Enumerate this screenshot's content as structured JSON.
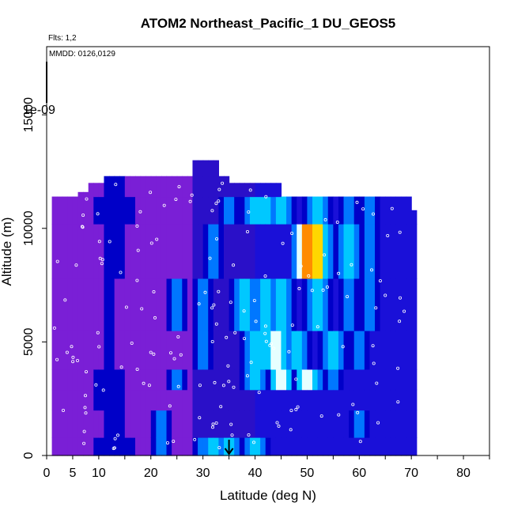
{
  "chart_data": {
    "type": "heatmap",
    "title": "ATOM2 Northeast_Pacific_1 DU_GEOS5",
    "flights_note": "Flts: 1,2",
    "dates_note": "MMDD: 0126,0129",
    "xlabel": "Latitude (deg N)",
    "ylabel": "Altitude (m)",
    "xlim": [
      0,
      85
    ],
    "ylim": [
      0,
      18000
    ],
    "x_tick_labels": [
      "0",
      "5",
      "10",
      "20",
      "30",
      "40",
      "50",
      "60",
      "70",
      "80"
    ],
    "y_tick_labels": [
      "0",
      "5000",
      "10000",
      "15000"
    ],
    "scale_label": "1e-09",
    "marker": {
      "type": "arrow",
      "latitude": 35
    },
    "grid": false,
    "colorscale": [
      "#7a1fd6",
      "#0000c8",
      "#0077ff",
      "#00c8ff",
      "#e6ffff",
      "#ffd700",
      "#ff8c00",
      "#cc0000"
    ],
    "cells": [
      [
        0,
        800,
        1,
        12
      ],
      [
        800,
        2000,
        2,
        22
      ],
      [
        2000,
        2900,
        1,
        13
      ],
      [
        2900,
        3800,
        0,
        10
      ],
      [
        3800,
        5500,
        0,
        8
      ],
      [
        5500,
        7800,
        0,
        6
      ],
      [
        7800,
        10200,
        0,
        5
      ],
      [
        10200,
        11400,
        0,
        6
      ],
      [
        11400,
        12300,
        0,
        6
      ],
      [
        12300,
        13000,
        0,
        6
      ],
      [
        0,
        800,
        2,
        22
      ],
      [
        800,
        2000,
        2,
        22
      ],
      [
        2000,
        2900,
        1,
        12
      ],
      [
        2900,
        3800,
        0,
        10
      ],
      [
        3800,
        5500,
        0,
        8
      ],
      [
        5500,
        7800,
        0,
        5
      ],
      [
        7800,
        10200,
        0,
        4
      ],
      [
        10200,
        11400,
        0,
        5
      ],
      [
        11400,
        12300,
        0,
        6
      ],
      [
        12300,
        13000,
        0,
        6
      ],
      [
        0,
        800,
        1,
        16
      ],
      [
        800,
        2000,
        1,
        14
      ],
      [
        2000,
        2900,
        1,
        14
      ],
      [
        2900,
        3800,
        0,
        12
      ],
      [
        3800,
        5500,
        0,
        10
      ],
      [
        5500,
        7800,
        0,
        7
      ],
      [
        7800,
        10200,
        0,
        6
      ],
      [
        10200,
        11400,
        0,
        7
      ],
      [
        11400,
        12300,
        0,
        8
      ],
      [
        12300,
        13000,
        0,
        8
      ],
      [
        0,
        800,
        1,
        16
      ],
      [
        800,
        2000,
        1,
        14
      ],
      [
        2000,
        2900,
        1,
        14
      ],
      [
        2900,
        3800,
        1,
        14
      ],
      [
        3800,
        5500,
        0,
        12
      ],
      [
        5500,
        7800,
        0,
        10
      ],
      [
        7800,
        10200,
        0,
        8
      ],
      [
        10200,
        11400,
        0,
        9
      ],
      [
        11400,
        12300,
        1,
        14
      ],
      [
        12300,
        13000,
        1,
        14
      ],
      [
        0,
        800,
        2,
        30
      ],
      [
        800,
        2000,
        1,
        12
      ],
      [
        2000,
        2900,
        1,
        11
      ],
      [
        2900,
        3800,
        1,
        10
      ],
      [
        3800,
        5500,
        1,
        12
      ],
      [
        5500,
        7800,
        0,
        14
      ],
      [
        7800,
        10200,
        0,
        12
      ],
      [
        10200,
        11400,
        1,
        16
      ],
      [
        11400,
        12300,
        1,
        12
      ],
      [
        12300,
        13000,
        1,
        12
      ],
      [
        0,
        800,
        3,
        32
      ],
      [
        800,
        2000,
        1,
        12
      ],
      [
        2000,
        2900,
        1,
        10
      ],
      [
        2900,
        3800,
        2,
        25
      ],
      [
        3800,
        5500,
        2,
        30
      ],
      [
        5500,
        7800,
        1,
        12
      ],
      [
        7800,
        10200,
        1,
        12
      ],
      [
        10200,
        11400,
        1,
        10
      ],
      [
        11400,
        12300,
        1,
        12
      ],
      [
        12300,
        13000,
        1,
        10
      ],
      [
        0,
        800,
        3,
        35
      ],
      [
        800,
        2000,
        1,
        14
      ],
      [
        2000,
        2900,
        1,
        10
      ],
      [
        2900,
        3800,
        3,
        40
      ],
      [
        3800,
        5500,
        3,
        40
      ],
      [
        5500,
        7800,
        1,
        12
      ],
      [
        7800,
        10200,
        1,
        12
      ],
      [
        10200,
        11400,
        1,
        14
      ],
      [
        11400,
        12300,
        1,
        12
      ],
      [
        12300,
        13000,
        1,
        14
      ],
      [
        0,
        800,
        3,
        40
      ],
      [
        800,
        2000,
        1,
        14
      ],
      [
        2000,
        2900,
        1,
        12
      ],
      [
        2900,
        3800,
        3,
        45
      ],
      [
        3800,
        5500,
        4,
        42
      ],
      [
        5500,
        7800,
        2,
        25
      ],
      [
        7800,
        10200,
        1,
        14
      ],
      [
        10200,
        11400,
        1,
        14
      ],
      [
        11400,
        12300,
        1,
        14
      ],
      [
        12300,
        13000,
        1,
        14
      ],
      [
        0,
        800,
        3,
        35
      ],
      [
        800,
        2000,
        1,
        14
      ],
      [
        2000,
        2900,
        1,
        12
      ],
      [
        2900,
        3800,
        5,
        45
      ],
      [
        3800,
        5500,
        4,
        40
      ],
      [
        5500,
        7800,
        2,
        30
      ],
      [
        7800,
        10200,
        2,
        32
      ],
      [
        10200,
        11400,
        2,
        35
      ],
      [
        11400,
        12300,
        1,
        14
      ],
      [
        12300,
        13000,
        1,
        14
      ],
      [
        0,
        800,
        2,
        22
      ],
      [
        800,
        2000,
        1,
        12
      ],
      [
        2000,
        2900,
        1,
        12
      ],
      [
        2900,
        3800,
        5,
        50
      ],
      [
        3800,
        5500,
        3,
        40
      ],
      [
        5500,
        7800,
        3,
        38
      ],
      [
        7800,
        10200,
        4,
        50
      ],
      [
        10200,
        11400,
        3,
        40
      ],
      [
        11400,
        12300,
        1,
        14
      ],
      [
        12300,
        13000,
        1,
        14
      ],
      [
        0,
        800,
        1,
        14
      ],
      [
        800,
        2000,
        1,
        12
      ],
      [
        2000,
        2900,
        1,
        12
      ],
      [
        2900,
        3800,
        4,
        45
      ],
      [
        3800,
        5500,
        3,
        45
      ],
      [
        5500,
        7800,
        3,
        42
      ],
      [
        7800,
        10200,
        6,
        52
      ],
      [
        10200,
        11400,
        3,
        42
      ],
      [
        11400,
        12300,
        1,
        14
      ],
      [
        12300,
        13000,
        1,
        14
      ],
      [
        0,
        800,
        1,
        12
      ],
      [
        800,
        2000,
        1,
        12
      ],
      [
        2000,
        2900,
        1,
        12
      ],
      [
        2900,
        3800,
        3,
        45
      ],
      [
        3800,
        5500,
        5,
        44
      ],
      [
        5500,
        7800,
        4,
        45
      ],
      [
        7800,
        10200,
        7,
        50
      ],
      [
        10200,
        11400,
        3,
        45
      ],
      [
        11400,
        12300,
        1,
        14
      ],
      [
        12300,
        13000,
        1,
        14
      ],
      [
        0,
        800,
        1,
        12
      ],
      [
        800,
        2000,
        1,
        12
      ],
      [
        2000,
        2900,
        1,
        12
      ],
      [
        2900,
        3800,
        2,
        52
      ],
      [
        3800,
        5500,
        4,
        48
      ],
      [
        5500,
        7800,
        3,
        52
      ],
      [
        7800,
        10200,
        6,
        52
      ],
      [
        10200,
        11400,
        3,
        52
      ],
      [
        11400,
        12300,
        1,
        14
      ],
      [
        12300,
        13000,
        1,
        14
      ],
      [
        0,
        800,
        1,
        10
      ],
      [
        800,
        2000,
        1,
        12
      ],
      [
        2000,
        2900,
        1,
        12
      ],
      [
        2900,
        3800,
        2,
        55
      ],
      [
        3800,
        5500,
        3,
        55
      ],
      [
        5500,
        7800,
        2,
        58
      ],
      [
        7800,
        10200,
        3,
        58
      ],
      [
        10200,
        11400,
        2,
        58
      ],
      [
        11400,
        12300,
        1,
        14
      ],
      [
        12300,
        13000,
        1,
        14
      ],
      [
        0,
        800,
        1,
        10
      ],
      [
        800,
        2000,
        2,
        60
      ],
      [
        2000,
        2900,
        1,
        12
      ],
      [
        2900,
        3800,
        1,
        12
      ],
      [
        3800,
        5500,
        2,
        60
      ],
      [
        5500,
        7800,
        2,
        62
      ],
      [
        7800,
        10200,
        2,
        62
      ],
      [
        10200,
        11400,
        2,
        62
      ],
      [
        11400,
        12300,
        1,
        14
      ],
      [
        12300,
        13000,
        1,
        14
      ],
      [
        0,
        800,
        1,
        10
      ],
      [
        800,
        2000,
        1,
        12
      ],
      [
        2000,
        2900,
        1,
        12
      ],
      [
        2900,
        3800,
        1,
        12
      ],
      [
        3800,
        5500,
        1,
        12
      ],
      [
        5500,
        7800,
        1,
        12
      ],
      [
        7800,
        10200,
        1,
        12
      ],
      [
        10200,
        11400,
        1,
        12
      ],
      [
        11400,
        12300,
        1,
        14
      ],
      [
        12300,
        13000,
        1,
        14
      ]
    ]
  }
}
